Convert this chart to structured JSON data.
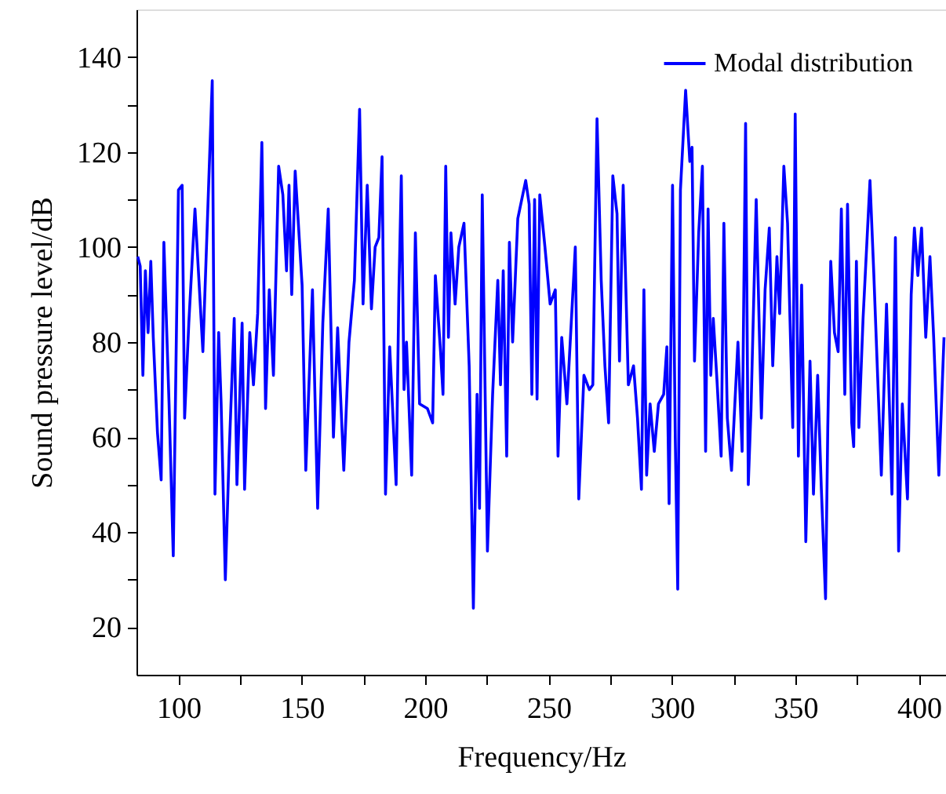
{
  "chart_data": {
    "type": "line",
    "xlabel": "Frequency/Hz",
    "ylabel": "Sound pressure level/dB",
    "xlim": [
      83,
      411
    ],
    "ylim": [
      10,
      150
    ],
    "xticks": [
      100,
      {
        "value": 125,
        "label": null
      },
      150,
      {
        "value": 175,
        "label": null
      },
      200,
      {
        "value": 225,
        "label": null
      },
      250,
      {
        "value": 275,
        "label": null
      },
      300,
      {
        "value": 325,
        "label": null
      },
      350,
      {
        "value": 375,
        "label": null
      },
      400
    ],
    "yticks": [
      20,
      {
        "value": 30,
        "label": null
      },
      40,
      {
        "value": 50,
        "label": null
      },
      60,
      {
        "value": 70,
        "label": null
      },
      80,
      {
        "value": 90,
        "label": null
      },
      100,
      {
        "value": 110,
        "label": null
      },
      120,
      {
        "value": 130,
        "label": null
      },
      140
    ],
    "grid": false,
    "legend": "top right",
    "marker": "none",
    "line_style": "solid",
    "series": [
      {
        "name": "Modal distribution",
        "color": "#0000ff",
        "x": [
          83.5,
          84.5,
          85.6,
          86.6,
          87.7,
          88.8,
          89.8,
          91.5,
          93,
          94.1,
          96.2,
          97.9,
          100,
          101.5,
          102.5,
          104.2,
          106.7,
          109.9,
          113.7,
          114.8,
          116.3,
          117.3,
          119,
          120.5,
          122.6,
          123.7,
          125.8,
          126.8,
          128.9,
          130.4,
          132.1,
          133.8,
          135.3,
          136.8,
          138.5,
          140.6,
          142.3,
          143.8,
          144.8,
          145.9,
          147.3,
          150.1,
          151.6,
          154.3,
          156.4,
          158.5,
          160.7,
          162.8,
          164.5,
          167,
          169.1,
          171.3,
          173.4,
          174.8,
          176.5,
          178.2,
          179.7,
          181.2,
          182.5,
          183.9,
          185.6,
          188.2,
          189.3,
          190.3,
          191.4,
          192.4,
          194.5,
          196,
          197.7,
          200.9,
          203,
          204.1,
          206.2,
          207.2,
          208.3,
          209.4,
          210.4,
          212.1,
          213.6,
          215.7,
          217.8,
          219.5,
          221,
          222,
          223.1,
          225.2,
          227.3,
          229.4,
          230.5,
          231.6,
          233,
          234.1,
          235.4,
          237.5,
          240.7,
          242.1,
          243.2,
          244.3,
          245.3,
          246.4,
          248.5,
          250.6,
          252.7,
          253.8,
          255.3,
          257.4,
          260.8,
          262.2,
          264.3,
          266.5,
          267.9,
          269.6,
          271.3,
          272.8,
          274.3,
          276,
          277.7,
          278.7,
          280.2,
          282.3,
          284.4,
          286,
          287.6,
          288.6,
          289.7,
          291.1,
          292.8,
          294.5,
          296.6,
          297.9,
          298.8,
          300.2,
          301.3,
          302.3,
          303.4,
          305.5,
          307.2,
          308.1,
          309.1,
          310.8,
          312.3,
          313.6,
          314.6,
          315.7,
          316.7,
          318.2,
          319.9,
          321,
          322.4,
          324.1,
          326.7,
          328.4,
          329.8,
          330.9,
          332,
          334.1,
          336.2,
          337.7,
          339.4,
          340.8,
          342.5,
          343.6,
          345.3,
          346.8,
          348.9,
          349.9,
          351.2,
          352.5,
          354.2,
          355.9,
          357.3,
          359,
          360.5,
          362.2,
          363.1,
          364.3,
          365.8,
          367.3,
          368.6,
          370,
          371.1,
          372.8,
          373.6,
          374.7,
          375.7,
          377.4,
          380.2,
          381.7,
          384.8,
          386.9,
          389.1,
          390.5,
          391.8,
          393.3,
          395.4,
          396.9,
          398.2,
          399.6,
          401.1,
          402.8,
          404.5,
          406,
          408.1,
          410.2
        ],
        "values": [
          98,
          96,
          73,
          95,
          82,
          97,
          81,
          61,
          51,
          101,
          67,
          35,
          112,
          113,
          64,
          84,
          108,
          78,
          135,
          48,
          82,
          67,
          30,
          56,
          85,
          50,
          84,
          49,
          82,
          71,
          86,
          122,
          66,
          91,
          73,
          117,
          111,
          95,
          113,
          90,
          116,
          92,
          53,
          91,
          45,
          84,
          108,
          60,
          83,
          53,
          80,
          93,
          129,
          88,
          113,
          87,
          100,
          102,
          119,
          48,
          79,
          50,
          90,
          115,
          70,
          80,
          52,
          103,
          67,
          66,
          63,
          94,
          78,
          69,
          117,
          81,
          103,
          88,
          100,
          105,
          75,
          24,
          69,
          45,
          111,
          36,
          69,
          93,
          71,
          95,
          56,
          101,
          80,
          106,
          114,
          109,
          69,
          110,
          68,
          111,
          100,
          88,
          91,
          56,
          81,
          67,
          100,
          47,
          73,
          70,
          71,
          127,
          93,
          75,
          63,
          115,
          107,
          76,
          113,
          71,
          75,
          64,
          49,
          91,
          52,
          67,
          57,
          67,
          69,
          79,
          46,
          113,
          60,
          28,
          112,
          133,
          118,
          121,
          76,
          103,
          117,
          57,
          108,
          73,
          85,
          72,
          56,
          105,
          64,
          53,
          80,
          57,
          126,
          50,
          66,
          110,
          64,
          91,
          104,
          75,
          98,
          86,
          117,
          105,
          62,
          128,
          56,
          92,
          38,
          76,
          48,
          73,
          49,
          26,
          62,
          97,
          82,
          78,
          108,
          69,
          109,
          63,
          58,
          97,
          62,
          85,
          114,
          95,
          52,
          88,
          48,
          102,
          36,
          67,
          47,
          90,
          104,
          94,
          104,
          81,
          98,
          81,
          52,
          81
        ]
      }
    ]
  }
}
